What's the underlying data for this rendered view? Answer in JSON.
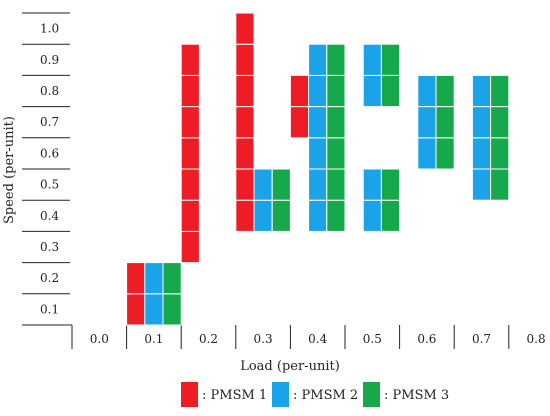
{
  "chart_data": {
    "type": "heatmap",
    "xlabel": "Load (per-unit)",
    "ylabel": "Speed (per-unit)",
    "x_ticks": [
      "0.0",
      "0.1",
      "0.2",
      "0.3",
      "0.4",
      "0.5",
      "0.6",
      "0.7",
      "0.8"
    ],
    "y_ticks": [
      "0.1",
      "0.2",
      "0.3",
      "0.4",
      "0.5",
      "0.6",
      "0.7",
      "0.8",
      "0.9",
      "1.0"
    ],
    "legend_position": "bottom",
    "series": [
      {
        "name": ": PMSM 1",
        "color": "#ee1c24",
        "cells": [
          {
            "load": 0.1,
            "speeds": [
              0.1,
              0.2
            ]
          },
          {
            "load": 0.2,
            "speeds": [
              0.3,
              0.4,
              0.5,
              0.6,
              0.7,
              0.8,
              0.9
            ]
          },
          {
            "load": 0.3,
            "speeds": [
              0.4,
              0.5,
              0.6,
              0.7,
              0.8,
              0.9,
              1.0
            ]
          },
          {
            "load": 0.4,
            "speeds": [
              0.7,
              0.8
            ]
          }
        ]
      },
      {
        "name": ": PMSM 2",
        "color": "#1aa3e8",
        "cells": [
          {
            "load": 0.1,
            "speeds": [
              0.1,
              0.2
            ]
          },
          {
            "load": 0.3,
            "speeds": [
              0.4,
              0.5
            ]
          },
          {
            "load": 0.4,
            "speeds": [
              0.4,
              0.5,
              0.6,
              0.7,
              0.8,
              0.9
            ]
          },
          {
            "load": 0.5,
            "speeds": [
              0.4,
              0.5,
              0.8,
              0.9
            ]
          },
          {
            "load": 0.6,
            "speeds": [
              0.6,
              0.7,
              0.8
            ]
          },
          {
            "load": 0.7,
            "speeds": [
              0.5,
              0.6,
              0.7,
              0.8
            ]
          }
        ]
      },
      {
        "name": ": PMSM 3",
        "color": "#16a94b",
        "cells": [
          {
            "load": 0.1,
            "speeds": [
              0.1,
              0.2
            ]
          },
          {
            "load": 0.3,
            "speeds": [
              0.4,
              0.5
            ]
          },
          {
            "load": 0.4,
            "speeds": [
              0.4,
              0.5,
              0.6,
              0.7,
              0.8,
              0.9
            ]
          },
          {
            "load": 0.5,
            "speeds": [
              0.4,
              0.5,
              0.8,
              0.9
            ]
          },
          {
            "load": 0.6,
            "speeds": [
              0.6,
              0.7,
              0.8
            ]
          },
          {
            "load": 0.7,
            "speeds": [
              0.5,
              0.6,
              0.7,
              0.8
            ]
          }
        ]
      }
    ]
  }
}
